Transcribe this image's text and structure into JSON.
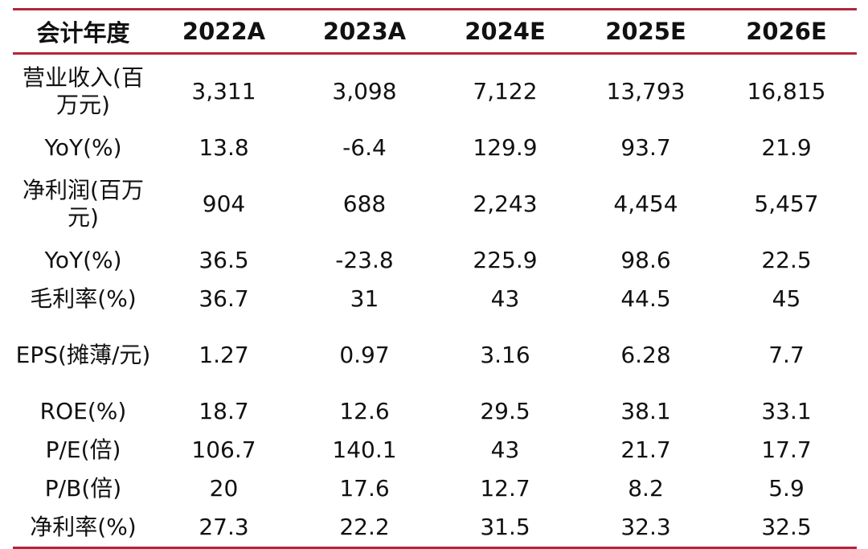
{
  "header": [
    "会计年度",
    "2022A",
    "2023A",
    "2024E",
    "2025E",
    "2026E"
  ],
  "rows": [
    {
      "label": "营业收入(百万元)",
      "values": [
        "3,311",
        "3,098",
        "7,122",
        "13,793",
        "16,815"
      ],
      "tall": true
    },
    {
      "label": "YoY(%)",
      "values": [
        "13.8",
        "-6.4",
        "129.9",
        "93.7",
        "21.9"
      ],
      "tall": false
    },
    {
      "label": "净利润(百万元)",
      "values": [
        "904",
        "688",
        "2,243",
        "4,454",
        "5,457"
      ],
      "tall": true
    },
    {
      "label": "YoY(%)",
      "values": [
        "36.5",
        "-23.8",
        "225.9",
        "98.6",
        "22.5"
      ],
      "tall": false
    },
    {
      "label": "毛利率(%)",
      "values": [
        "36.7",
        "31",
        "43",
        "44.5",
        "45"
      ],
      "tall": false
    },
    {
      "label": "EPS(摊薄/元)",
      "values": [
        "1.27",
        "0.97",
        "3.16",
        "6.28",
        "7.7"
      ],
      "tall": true
    },
    {
      "label": "ROE(%)",
      "values": [
        "18.7",
        "12.6",
        "29.5",
        "38.1",
        "33.1"
      ],
      "tall": false
    },
    {
      "label": "P/E(倍)",
      "values": [
        "106.7",
        "140.1",
        "43",
        "21.7",
        "17.7"
      ],
      "tall": false
    },
    {
      "label": "P/B(倍)",
      "values": [
        "20",
        "17.6",
        "12.7",
        "8.2",
        "5.9"
      ],
      "tall": false
    },
    {
      "label": "净利率(%)",
      "values": [
        "27.3",
        "22.2",
        "31.5",
        "32.3",
        "32.5"
      ],
      "tall": false
    }
  ]
}
